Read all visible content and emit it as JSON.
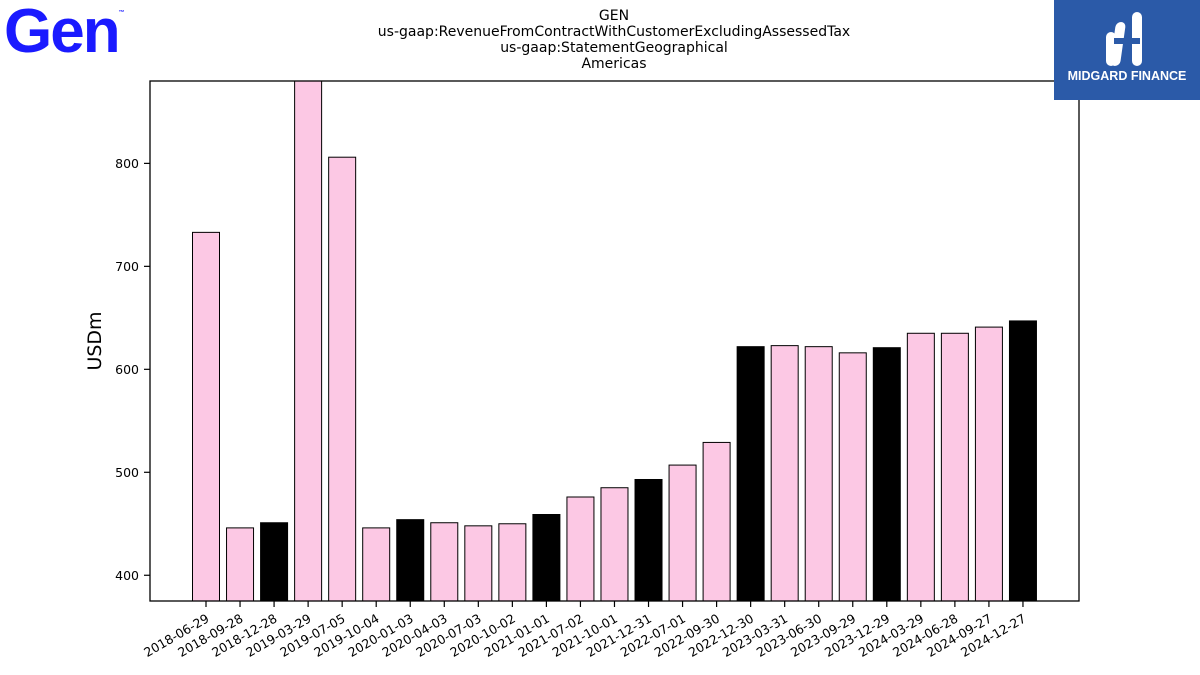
{
  "logos": {
    "left_text": "Gen",
    "left_tm": "™",
    "left_color": "#1a1aff",
    "right_text": "MIDGARD FINANCE",
    "right_bg": "#2b5aa8"
  },
  "chart_data": {
    "type": "bar",
    "title_lines": [
      "GEN",
      "us-gaap:RevenueFromContractWithCustomerExcludingAssessedTax",
      "us-gaap:StatementGeographical",
      "Americas"
    ],
    "xlabel": "",
    "ylabel": "USDm",
    "ylim": [
      375,
      880
    ],
    "yticks": [
      400,
      500,
      600,
      700,
      800
    ],
    "categories": [
      "2018-06-29",
      "2018-09-28",
      "2018-12-28",
      "2019-03-29",
      "2019-07-05",
      "2019-10-04",
      "2020-01-03",
      "2020-04-03",
      "2020-07-03",
      "2020-10-02",
      "2021-01-01",
      "2021-07-02",
      "2021-10-01",
      "2021-12-31",
      "2022-07-01",
      "2022-09-30",
      "2022-12-30",
      "2023-03-31",
      "2023-06-30",
      "2023-09-29",
      "2023-12-29",
      "2024-03-29",
      "2024-06-28",
      "2024-09-27",
      "2024-12-27"
    ],
    "values": [
      733,
      446,
      451,
      880,
      806,
      446,
      454,
      451,
      448,
      450,
      459,
      476,
      485,
      493,
      507,
      529,
      622,
      623,
      622,
      616,
      621,
      635,
      635,
      641,
      647
    ],
    "highlight": [
      false,
      false,
      true,
      false,
      false,
      false,
      true,
      false,
      false,
      false,
      true,
      false,
      false,
      true,
      false,
      false,
      true,
      false,
      false,
      false,
      true,
      false,
      false,
      false,
      true
    ],
    "colors": {
      "bar": "#fcc8e4",
      "highlight": "#000000",
      "edge": "#000000"
    },
    "grid": false
  }
}
